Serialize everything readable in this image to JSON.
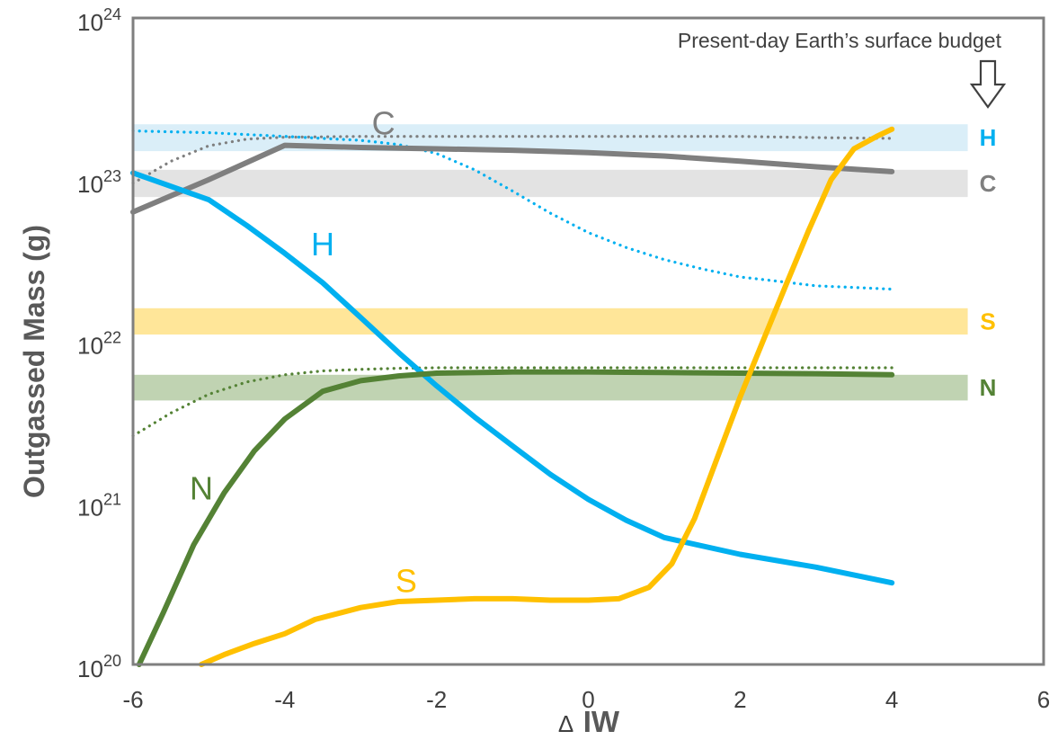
{
  "chart_data": {
    "type": "line",
    "xlabel": "ΔIW",
    "xlabel_prefix": "Δ",
    "xlabel_main": "IW",
    "ylabel": "Outgassed Mass (g)",
    "xlim": [
      -6,
      6
    ],
    "ylim": [
      1e+20,
      1e+24
    ],
    "yscale": "log",
    "x_ticks": [
      -6,
      -4,
      -2,
      0,
      2,
      4,
      6
    ],
    "x_tick_labels": [
      "-6",
      "-4",
      "-2",
      "0",
      "2",
      "4",
      "6"
    ],
    "y_ticks": [
      20,
      21,
      22,
      23,
      24
    ],
    "y_tick_base": "10",
    "y_tick_exponents": [
      "20",
      "21",
      "22",
      "23",
      "24"
    ],
    "grid": false,
    "annotation": "Present-day Earth’s surface budget",
    "arrow_icon": "down-arrow-outline-icon",
    "series": [
      {
        "name": "C",
        "color": "#7f7f7f",
        "style": "solid",
        "x": [
          -6,
          -5,
          -4,
          -3,
          -2,
          -1,
          0,
          1,
          2,
          3,
          4
        ],
        "y": [
          6.3e+22,
          1e+23,
          1.63e+23,
          1.58e+23,
          1.55e+23,
          1.52e+23,
          1.47e+23,
          1.4e+23,
          1.3e+23,
          1.2e+23,
          1.12e+23
        ]
      },
      {
        "name": "H",
        "color": "#00b0f0",
        "style": "solid",
        "x": [
          -6,
          -5,
          -4.5,
          -4,
          -3.5,
          -3,
          -2.5,
          -2,
          -1.5,
          -1,
          -0.5,
          0,
          0.5,
          1,
          2,
          3,
          4
        ],
        "y": [
          1.1e+23,
          7.5e+22,
          5.2e+22,
          3.5e+22,
          2.3e+22,
          1.4e+22,
          8.5e+21,
          5.3e+21,
          3.4e+21,
          2.25e+21,
          1.5e+21,
          1.05e+21,
          7.8e+20,
          6.1e+20,
          4.8e+20,
          4e+20,
          3.2e+20
        ]
      },
      {
        "name": "N",
        "color": "#548235",
        "style": "solid",
        "x": [
          -5.92,
          -5.6,
          -5.2,
          -4.8,
          -4.4,
          -4,
          -3.5,
          -3,
          -2.5,
          -2,
          -1,
          0,
          1,
          2,
          3,
          4
        ],
        "y": [
          1e+20,
          2.1e+20,
          5.5e+20,
          1.15e+21,
          2.1e+21,
          3.3e+21,
          4.9e+21,
          5.7e+21,
          6.1e+21,
          6.35e+21,
          6.45e+21,
          6.45e+21,
          6.4e+21,
          6.35e+21,
          6.3e+21,
          6.2e+21
        ]
      },
      {
        "name": "S",
        "color": "#ffc000",
        "style": "solid",
        "x": [
          -5.1,
          -4.8,
          -4.4,
          -4,
          -3.6,
          -3,
          -2.5,
          -2,
          -1.5,
          -1,
          -0.5,
          0,
          0.4,
          0.8,
          1.1,
          1.4,
          1.7,
          2,
          2.3,
          2.6,
          2.9,
          3.2,
          3.5,
          3.8,
          4
        ],
        "y": [
          1e+20,
          1.15e+20,
          1.35e+20,
          1.55e+20,
          1.9e+20,
          2.25e+20,
          2.45e+20,
          2.5e+20,
          2.55e+20,
          2.55e+20,
          2.5e+20,
          2.5e+20,
          2.55e+20,
          3e+20,
          4.2e+20,
          8e+20,
          1.9e+21,
          4.5e+21,
          1e+22,
          2.2e+22,
          4.8e+22,
          1e+23,
          1.55e+23,
          1.85e+23,
          2.05e+23
        ]
      },
      {
        "name": "H (dotted)",
        "color": "#00b0f0",
        "style": "dotted",
        "x": [
          -6,
          -5,
          -4,
          -3,
          -2.5,
          -2,
          -1.5,
          -1,
          -0.5,
          0,
          0.5,
          1,
          1.5,
          2,
          2.5,
          3,
          3.5,
          4
        ],
        "y": [
          2e+23,
          1.95e+23,
          1.85e+23,
          1.75e+23,
          1.65e+23,
          1.45e+23,
          1.15e+23,
          8.5e+22,
          6.2e+22,
          4.7e+22,
          3.8e+22,
          3.2e+22,
          2.8e+22,
          2.5e+22,
          2.35e+22,
          2.2e+22,
          2.15e+22,
          2.1e+22
        ]
      },
      {
        "name": "C (dotted)",
        "color": "#7f7f7f",
        "style": "dotted",
        "x": [
          -6,
          -5.5,
          -5,
          -4.5,
          -4,
          -3,
          -2,
          -1,
          0,
          1,
          2,
          3,
          4
        ],
        "y": [
          9.5e+22,
          1.3e+23,
          1.62e+23,
          1.78e+23,
          1.83e+23,
          1.85e+23,
          1.85e+23,
          1.85e+23,
          1.85e+23,
          1.85e+23,
          1.85e+23,
          1.82e+23,
          1.8e+23
        ]
      },
      {
        "name": "N (dotted)",
        "color": "#548235",
        "style": "dotted",
        "x": [
          -6,
          -5.5,
          -5,
          -4.5,
          -4,
          -3.5,
          -3,
          -2.5,
          -2,
          -1,
          0,
          1,
          2,
          3,
          4
        ],
        "y": [
          2.6e+21,
          3.6e+21,
          4.7e+21,
          5.6e+21,
          6.2e+21,
          6.55e+21,
          6.7e+21,
          6.8e+21,
          6.85e+21,
          6.85e+21,
          6.85e+21,
          6.85e+21,
          6.85e+21,
          6.85e+21,
          6.85e+21
        ]
      }
    ],
    "curve_labels": [
      {
        "series": "C",
        "text": "C",
        "x": -2.7,
        "y": 1.9e+23
      },
      {
        "series": "H",
        "text": "H",
        "x": -3.5,
        "y": 3.4e+22
      },
      {
        "series": "N",
        "text": "N",
        "x": -5.1,
        "y": 1.05e+21
      },
      {
        "series": "S",
        "text": "S",
        "x": -2.4,
        "y": 2.8e+20
      }
    ],
    "bands": [
      {
        "label": "H",
        "color": "#00b0f0",
        "fill": "#daeef8",
        "y_low": 1.5e+23,
        "y_high": 2.2e+23
      },
      {
        "label": "C",
        "color": "#7f7f7f",
        "fill": "#e3e3e3",
        "y_low": 7.8e+22,
        "y_high": 1.15e+23
      },
      {
        "label": "S",
        "color": "#ffc000",
        "fill": "#ffe699",
        "y_low": 1.1e+22,
        "y_high": 1.6e+22
      },
      {
        "label": "N",
        "color": "#548235",
        "fill": "#c0d3b2",
        "y_low": 4.3e+21,
        "y_high": 6.2e+21
      }
    ],
    "band_x_range": [
      -6,
      5
    ]
  }
}
